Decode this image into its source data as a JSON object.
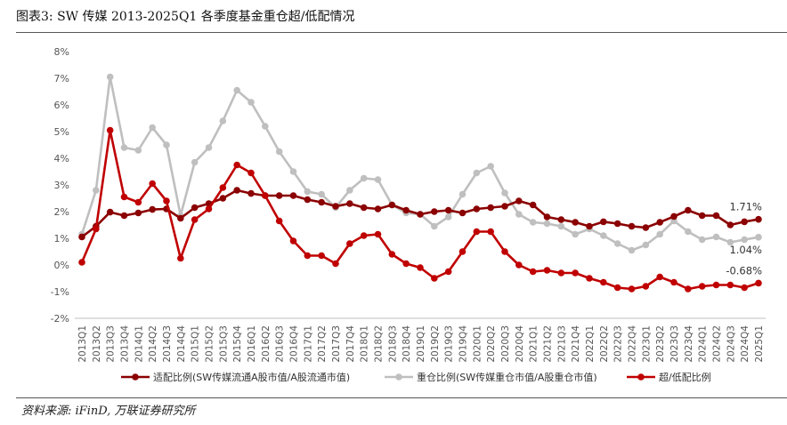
{
  "figure": {
    "title": "图表3:   SW 传媒 2013-2025Q1 各季度基金重仓超/低配情况",
    "source": "资料来源: iFinD, 万联证券研究所"
  },
  "chart_data": {
    "type": "line",
    "x": [
      "2013Q1",
      "2013Q2",
      "2013Q3",
      "2013Q4",
      "2014Q1",
      "2014Q2",
      "2014Q3",
      "2014Q4",
      "2015Q1",
      "2015Q2",
      "2015Q3",
      "2015Q4",
      "2016Q1",
      "2016Q2",
      "2016Q3",
      "2016Q4",
      "2017Q1",
      "2017Q2",
      "2017Q3",
      "2017Q4",
      "2018Q1",
      "2018Q2",
      "2018Q3",
      "2018Q4",
      "2019Q1",
      "2019Q2",
      "2019Q3",
      "2019Q4",
      "2020Q1",
      "2020Q2",
      "2020Q3",
      "2020Q4",
      "2021Q1",
      "2021Q2",
      "2021Q3",
      "2021Q4",
      "2022Q1",
      "2022Q2",
      "2022Q3",
      "2022Q4",
      "2023Q1",
      "2023Q2",
      "2023Q3",
      "2023Q4",
      "2024Q1",
      "2024Q2",
      "2024Q3",
      "2024Q4",
      "2025Q1"
    ],
    "ylim": [
      -2,
      8
    ],
    "yticks": [
      -2,
      -1,
      0,
      1,
      2,
      3,
      4,
      5,
      6,
      7,
      8
    ],
    "ytick_labels": [
      "-2%",
      "-1%",
      "0%",
      "1%",
      "2%",
      "3%",
      "4%",
      "5%",
      "6%",
      "7%",
      "8%"
    ],
    "grid": false,
    "legend_position": "bottom",
    "series": [
      {
        "name": "适配比例(SW传媒流通A股市值/A股流通市值)",
        "color": "#8B0000",
        "values": [
          1.05,
          1.45,
          1.98,
          1.85,
          1.95,
          2.08,
          2.1,
          1.75,
          2.15,
          2.3,
          2.5,
          2.8,
          2.68,
          2.6,
          2.6,
          2.6,
          2.45,
          2.35,
          2.2,
          2.3,
          2.15,
          2.1,
          2.25,
          2.05,
          1.9,
          2.0,
          2.05,
          1.95,
          2.1,
          2.15,
          2.2,
          2.4,
          2.25,
          1.8,
          1.7,
          1.6,
          1.45,
          1.62,
          1.55,
          1.45,
          1.4,
          1.6,
          1.82,
          2.05,
          1.85,
          1.85,
          1.5,
          1.62,
          1.71
        ]
      },
      {
        "name": "重仓比例(SW传媒重仓市值/A股重仓市值)",
        "color": "#BFBFBF",
        "values": [
          1.15,
          2.8,
          7.05,
          4.4,
          4.3,
          5.15,
          4.5,
          1.85,
          3.85,
          4.4,
          5.4,
          6.55,
          6.1,
          5.2,
          4.25,
          3.5,
          2.75,
          2.65,
          2.15,
          2.8,
          3.25,
          3.2,
          2.25,
          1.95,
          1.9,
          1.45,
          1.8,
          2.65,
          3.45,
          3.7,
          2.7,
          1.9,
          1.6,
          1.55,
          1.45,
          1.15,
          1.35,
          1.1,
          0.8,
          0.55,
          0.75,
          1.15,
          1.65,
          1.25,
          0.95,
          1.05,
          0.85,
          0.95,
          1.04
        ]
      },
      {
        "name": "超/低配比例",
        "color": "#C00000",
        "values": [
          0.1,
          1.35,
          5.05,
          2.55,
          2.35,
          3.05,
          2.4,
          0.25,
          1.7,
          2.1,
          2.9,
          3.75,
          3.45,
          2.6,
          1.65,
          0.9,
          0.35,
          0.35,
          0.05,
          0.8,
          1.1,
          1.15,
          0.4,
          0.05,
          -0.1,
          -0.5,
          -0.25,
          0.5,
          1.25,
          1.25,
          0.5,
          0.0,
          -0.25,
          -0.2,
          -0.3,
          -0.3,
          -0.5,
          -0.65,
          -0.85,
          -0.9,
          -0.8,
          -0.45,
          -0.65,
          -0.9,
          -0.8,
          -0.75,
          -0.75,
          -0.85,
          -0.68
        ]
      }
    ],
    "annotations": [
      {
        "text": "1.71%",
        "series": 0
      },
      {
        "text": "1.04%",
        "series": 1
      },
      {
        "text": "-0.68%",
        "series": 2
      }
    ]
  }
}
